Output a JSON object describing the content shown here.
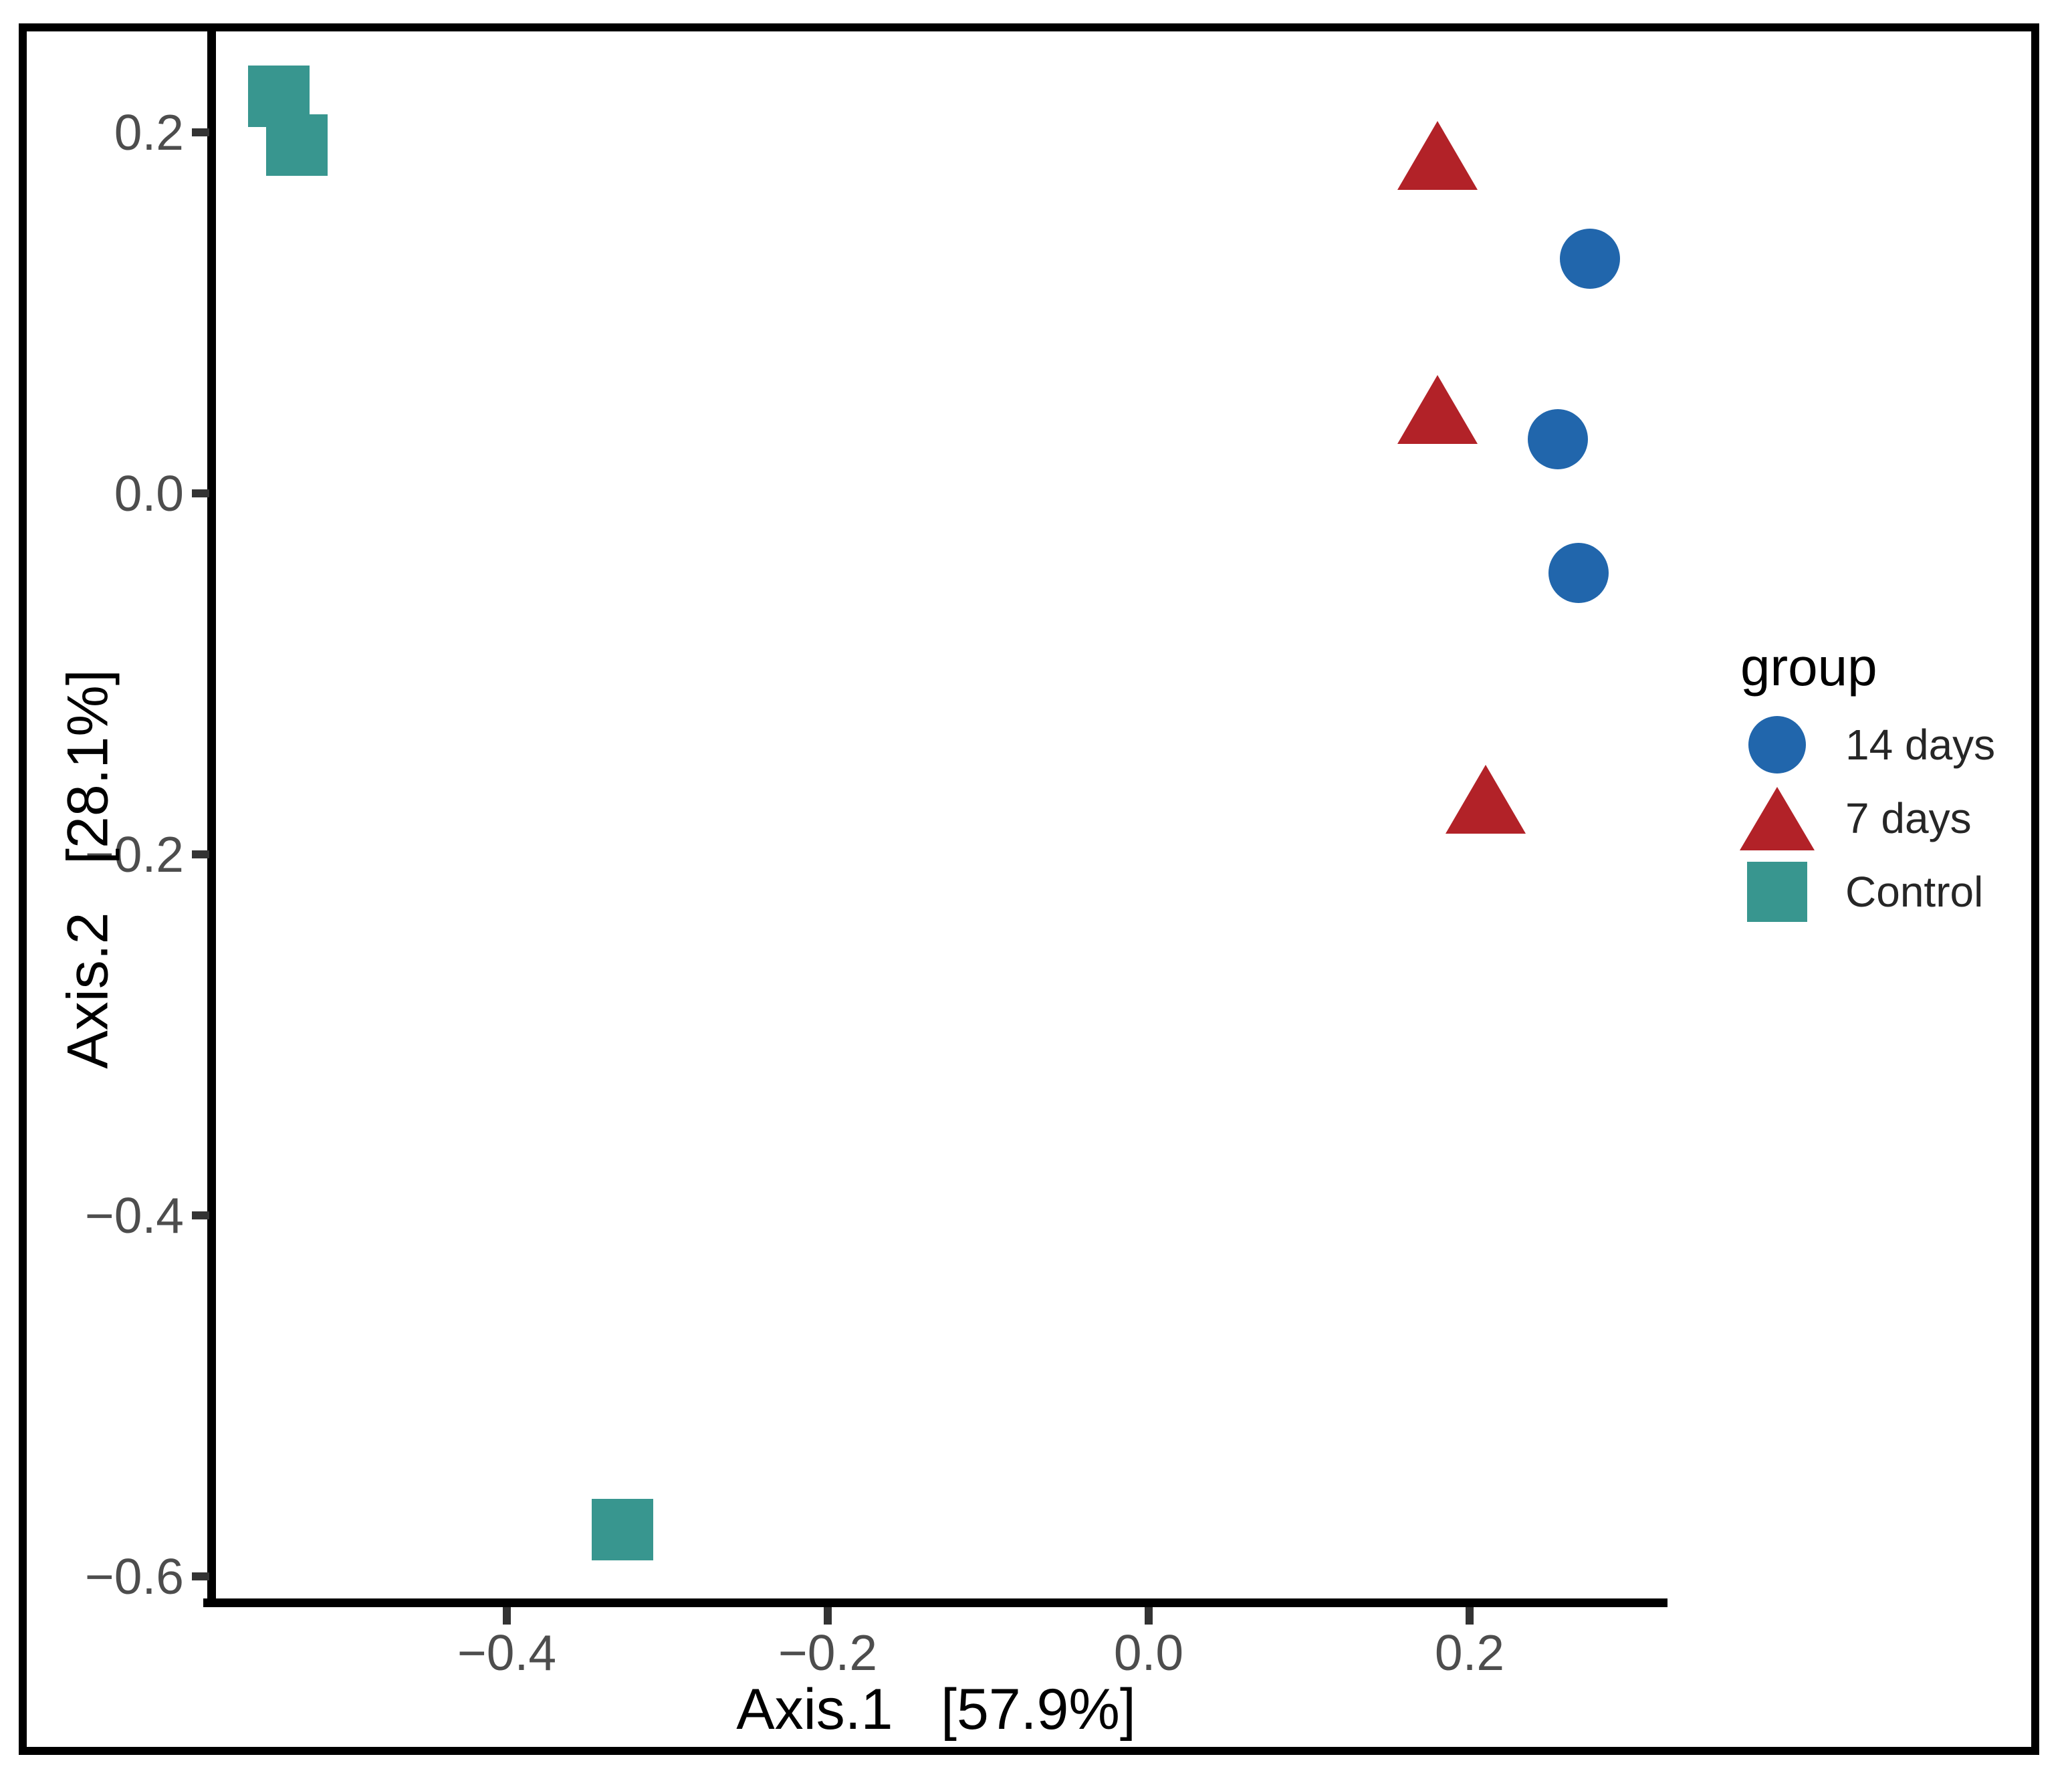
{
  "chart_data": {
    "type": "scatter",
    "title": "",
    "xlabel": "Axis.1   [57.9%]",
    "ylabel": "Axis.2   [28.1%]",
    "xlim": [
      -0.584,
      0.322
    ],
    "ylim": [
      -0.614,
      0.26
    ],
    "grid": false,
    "x_ticks": [
      {
        "value": -0.4,
        "label": "−0.4"
      },
      {
        "value": -0.2,
        "label": "−0.2"
      },
      {
        "value": 0.0,
        "label": "0.0"
      },
      {
        "value": 0.2,
        "label": "0.2"
      }
    ],
    "y_ticks": [
      {
        "value": 0.2,
        "label": "0.2"
      },
      {
        "value": 0.0,
        "label": "0.0"
      },
      {
        "value": -0.2,
        "label": "−0.2"
      },
      {
        "value": -0.4,
        "label": "−0.4"
      },
      {
        "value": -0.6,
        "label": "−0.6"
      }
    ],
    "legend_position": "right",
    "legend_title": "group",
    "series": [
      {
        "name": "14 days",
        "marker": "circle",
        "color": "#2166AC",
        "points": [
          [
            0.275,
            0.13
          ],
          [
            0.255,
            0.03
          ],
          [
            0.268,
            -0.044
          ]
        ]
      },
      {
        "name": "7 days",
        "marker": "triangle",
        "color": "#B22228",
        "points": [
          [
            0.18,
            0.181
          ],
          [
            0.18,
            0.04
          ],
          [
            0.21,
            -0.176
          ]
        ]
      },
      {
        "name": "Control",
        "marker": "square",
        "color": "#38968F",
        "points": [
          [
            -0.542,
            0.22
          ],
          [
            -0.531,
            0.193
          ],
          [
            -0.328,
            -0.574
          ]
        ]
      }
    ]
  },
  "style": {
    "axis_line_color": "#000000",
    "tick_color": "#333333",
    "tick_label_color": "#4d4d4d",
    "background": "#ffffff"
  }
}
